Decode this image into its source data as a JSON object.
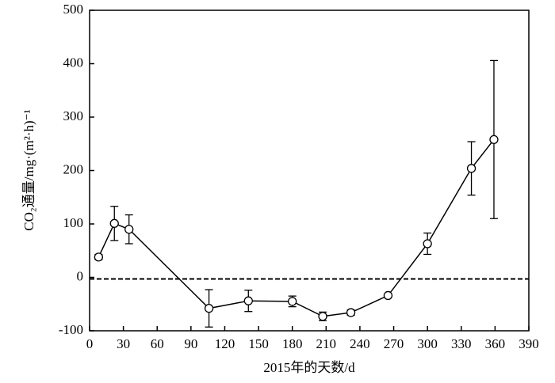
{
  "chart_data": {
    "type": "line",
    "x_label": "2015年的天数/d",
    "y_label": "CO₂通量/mg·(m²·h)⁻¹",
    "x": [
      8,
      22,
      35,
      106,
      141,
      180,
      207,
      232,
      265,
      300,
      339,
      359
    ],
    "values": [
      38,
      101,
      90,
      -58,
      -44,
      -45,
      -73,
      -66,
      -34,
      63,
      204,
      258
    ],
    "errors": [
      5,
      32,
      27,
      35,
      20,
      10,
      8,
      5,
      3,
      20,
      50,
      148
    ],
    "color": "#000000",
    "reference_line": -3,
    "xlim": [
      0,
      390
    ],
    "xticks": [
      0,
      30,
      60,
      90,
      120,
      150,
      180,
      210,
      240,
      270,
      300,
      330,
      360,
      390
    ],
    "ylim": [
      -100,
      500
    ],
    "yticks": [
      -100,
      0,
      100,
      200,
      300,
      400,
      500
    ]
  }
}
